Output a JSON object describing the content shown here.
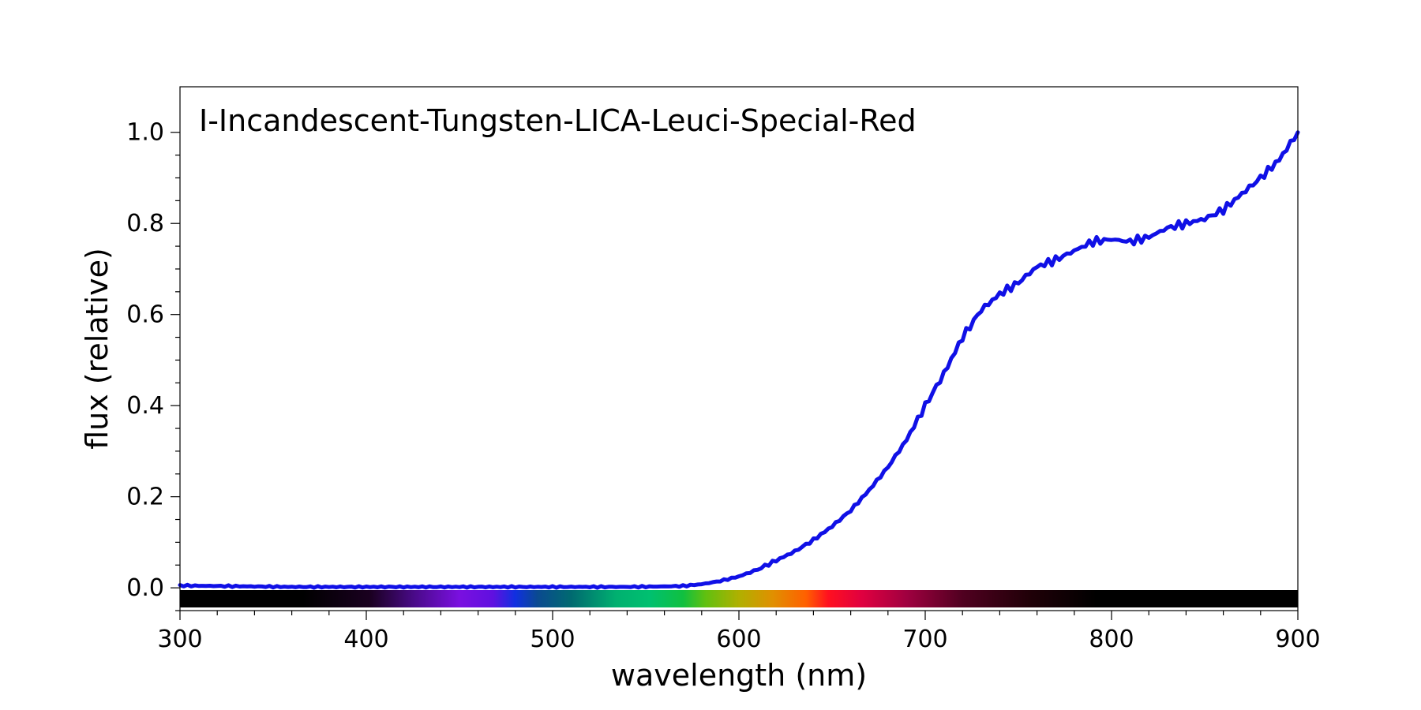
{
  "chart_data": {
    "type": "line",
    "title": "I-Incandescent-Tungsten-LICA-Leuci-Special-Red",
    "xlabel": "wavelength (nm)",
    "ylabel": "flux (relative)",
    "xlim": [
      300,
      900
    ],
    "ylim": [
      -0.05,
      1.1
    ],
    "x_ticks": [
      300,
      400,
      500,
      600,
      700,
      800,
      900
    ],
    "x_tick_labels": [
      "300",
      "400",
      "500",
      "600",
      "700",
      "800",
      "900"
    ],
    "y_ticks": [
      0.0,
      0.2,
      0.4,
      0.6,
      0.8,
      1.0
    ],
    "y_tick_labels": [
      "0.0",
      "0.2",
      "0.4",
      "0.6",
      "0.8",
      "1.0"
    ],
    "grid": false,
    "legend": "none",
    "line_color": "#1010e6",
    "spectrum_bar": true,
    "series": [
      {
        "x": [
          300,
          320,
          340,
          360,
          400,
          450,
          500,
          540,
          560,
          570,
          580,
          590,
          600,
          610,
          620,
          630,
          640,
          650,
          660,
          670,
          680,
          690,
          700,
          710,
          720,
          730,
          740,
          750,
          760,
          770,
          780,
          790,
          800,
          810,
          820,
          830,
          840,
          850,
          860,
          870,
          880,
          890,
          900
        ],
        "y": [
          0.005,
          0.004,
          0.003,
          0.002,
          0.002,
          0.002,
          0.002,
          0.002,
          0.003,
          0.004,
          0.008,
          0.015,
          0.025,
          0.04,
          0.06,
          0.08,
          0.105,
          0.135,
          0.17,
          0.215,
          0.265,
          0.325,
          0.4,
          0.47,
          0.55,
          0.61,
          0.645,
          0.67,
          0.705,
          0.72,
          0.74,
          0.76,
          0.765,
          0.76,
          0.77,
          0.79,
          0.8,
          0.81,
          0.83,
          0.865,
          0.9,
          0.94,
          1.0
        ]
      }
    ]
  }
}
